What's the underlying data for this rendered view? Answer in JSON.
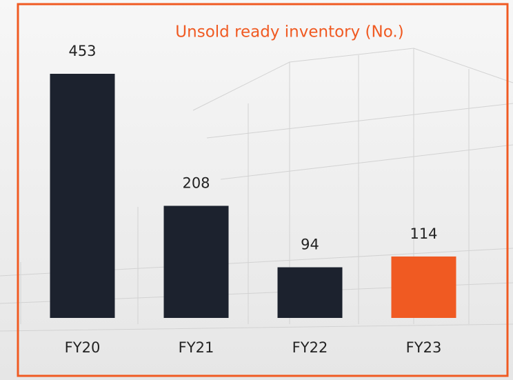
{
  "chart_data": {
    "type": "bar",
    "title": "Unsold ready inventory (No.)",
    "categories": [
      "FY20",
      "FY21",
      "FY22",
      "FY23"
    ],
    "values": [
      453,
      208,
      94,
      114
    ],
    "colors": [
      "#1c222e",
      "#1c222e",
      "#1c222e",
      "#f05a22"
    ]
  }
}
